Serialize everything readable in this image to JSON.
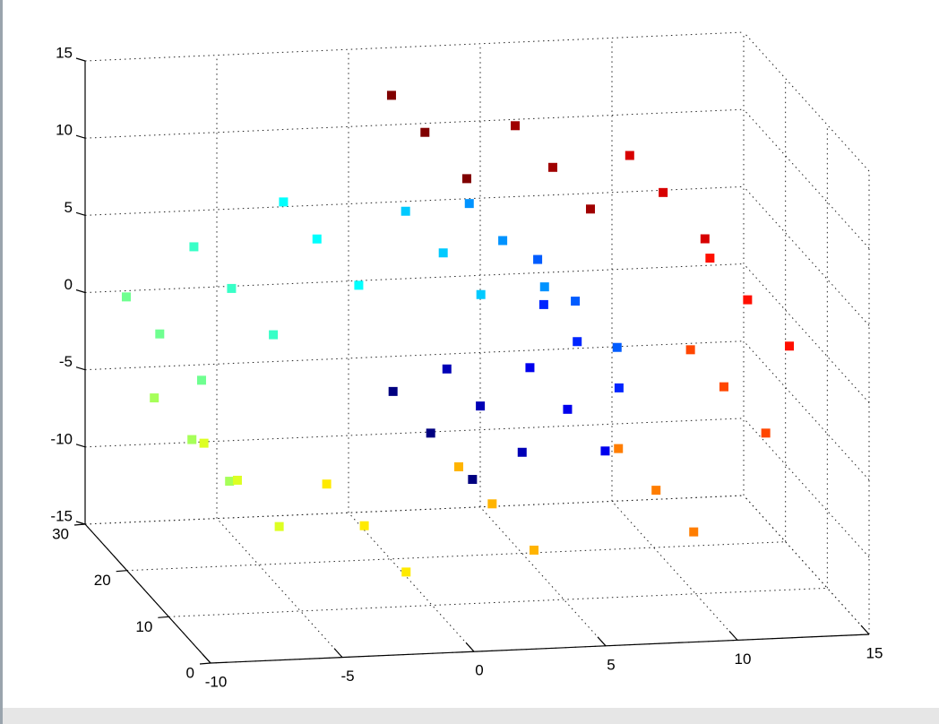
{
  "chart_data": {
    "type": "scatter3d",
    "colormap": "jet",
    "grid": true,
    "xlim": [
      -10,
      15
    ],
    "xticks": [
      -10,
      -5,
      0,
      5,
      10,
      15
    ],
    "ylim": [
      0,
      30
    ],
    "yticks": [
      0,
      10,
      20,
      30
    ],
    "zlim": [
      -15,
      15
    ],
    "zticks": [
      -15,
      -10,
      -5,
      0,
      5,
      10,
      15
    ],
    "series": [
      {
        "x": [
          0.42,
          0.42,
          0.42,
          2.94,
          2.94,
          2.94,
          5.14,
          5.14,
          5.14,
          6.3,
          6.3,
          6.3,
          5.91,
          5.91,
          5.91,
          3.79,
          3.79,
          3.79,
          0.42,
          0.42,
          0.42,
          -3.58,
          -3.58,
          -3.58,
          -7.14,
          -7.14,
          -7.14,
          -9.23,
          -9.23,
          -9.23,
          -9.12,
          -9.12,
          -9.12,
          -6.6,
          -6.6,
          -6.6,
          -2.1,
          -2.1,
          -2.1,
          3.39,
          3.39,
          3.39,
          8.5,
          8.5,
          8.5,
          11.87,
          11.87,
          11.87,
          12.45,
          12.45,
          12.45,
          9.88,
          9.88,
          9.88,
          4.58,
          4.58,
          4.58,
          0.52,
          0.52,
          0.52
        ],
        "y": [
          3,
          13,
          22,
          7,
          17,
          25,
          1,
          10,
          19,
          5,
          15,
          23,
          3,
          13,
          22,
          7,
          17,
          25,
          1,
          10,
          19,
          5,
          15,
          23,
          3,
          13,
          22,
          7,
          17,
          25,
          1,
          10,
          19,
          5,
          15,
          23,
          3,
          13,
          22,
          7,
          17,
          25,
          1,
          10,
          19,
          5,
          15,
          23,
          3,
          13,
          22,
          7,
          17,
          25,
          1,
          10,
          19,
          5,
          15,
          23
        ],
        "z": [
          -4.78,
          -4.78,
          -4.78,
          -4.41,
          -4.41,
          -4.41,
          -2.69,
          -2.69,
          -2.69,
          0.11,
          0.11,
          0.11,
          3.36,
          3.36,
          3.36,
          6.24,
          6.24,
          6.24,
          7.79,
          7.79,
          7.79,
          7.49,
          7.49,
          7.49,
          5.15,
          5.15,
          5.15,
          1.16,
          1.16,
          1.16,
          -3.59,
          -3.59,
          -3.59,
          -7.91,
          -7.91,
          -7.91,
          -10.59,
          -10.59,
          -10.59,
          -10.78,
          -10.78,
          -10.78,
          -8.18,
          -8.18,
          -8.18,
          -3.23,
          -3.23,
          -3.23,
          2.96,
          2.96,
          2.96,
          8.9,
          8.9,
          8.9,
          13.02,
          13.02,
          13.02,
          14.09,
          14.09,
          14.09
        ],
        "c": [
          4.8,
          4.8,
          4.8,
          5.3,
          5.3,
          5.3,
          5.8,
          5.8,
          5.8,
          6.3,
          6.3,
          6.3,
          6.8,
          6.8,
          6.8,
          7.3,
          7.3,
          7.3,
          7.8,
          7.8,
          7.8,
          8.3,
          8.3,
          8.3,
          8.8,
          8.8,
          8.8,
          9.3,
          9.3,
          9.3,
          9.8,
          9.8,
          9.8,
          10.3,
          10.3,
          10.3,
          10.8,
          10.8,
          10.8,
          11.3,
          11.3,
          11.3,
          11.8,
          11.8,
          11.8,
          12.3,
          12.3,
          12.3,
          12.8,
          12.8,
          12.8,
          13.3,
          13.3,
          13.3,
          13.8,
          13.8,
          13.8,
          14.1,
          14.1,
          14.1
        ]
      }
    ]
  }
}
